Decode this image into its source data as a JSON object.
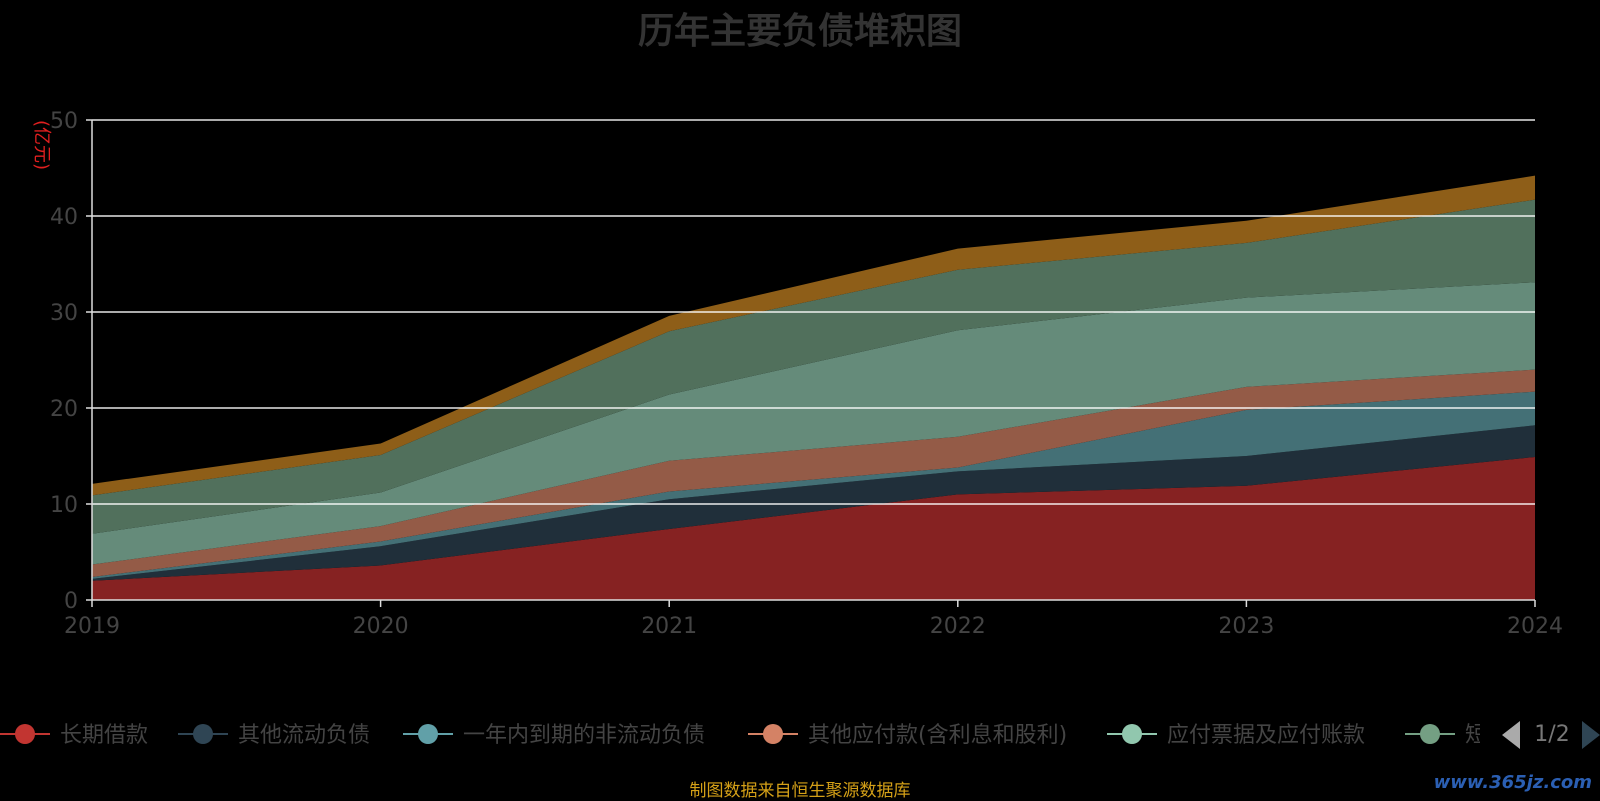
{
  "chart_data": {
    "type": "area",
    "stacked": true,
    "title": "历年主要负债堆积图",
    "ylabel": "(亿元)",
    "x": [
      "2019",
      "2020",
      "2021",
      "2022",
      "2023",
      "2024"
    ],
    "ylim": [
      0,
      50
    ],
    "yticks": [
      "0",
      "10",
      "20",
      "30",
      "40",
      "50"
    ],
    "grid": true,
    "legend_position": "bottom",
    "legend_page": "1/2",
    "series": [
      {
        "name": "长期借款",
        "color": "#c23531",
        "fill": "#862222",
        "values": [
          2.0,
          3.6,
          7.4,
          11.0,
          11.9,
          14.9
        ]
      },
      {
        "name": "其他流动负债",
        "color": "#2f4554",
        "fill": "#202f3a",
        "values": [
          0.2,
          2.0,
          3.1,
          2.4,
          3.1,
          3.3
        ]
      },
      {
        "name": "一年内到期的非流动负债",
        "color": "#61a0a8",
        "fill": "#447076",
        "values": [
          0.2,
          0.5,
          0.8,
          0.4,
          4.8,
          3.5
        ]
      },
      {
        "name": "其他应付款(含利息和股利)",
        "color": "#d48265",
        "fill": "#945b47",
        "values": [
          1.3,
          1.6,
          3.2,
          3.2,
          2.4,
          2.3
        ]
      },
      {
        "name": "应付票据及应付账款",
        "color": "#91c7ae",
        "fill": "#658b7a",
        "values": [
          3.2,
          3.5,
          6.9,
          11.1,
          9.3,
          9.1
        ]
      },
      {
        "name": "短期借款",
        "color": "#749f83",
        "fill": "#51705c",
        "values": [
          4.0,
          3.9,
          6.6,
          6.3,
          5.7,
          8.6
        ]
      },
      {
        "name": "",
        "color": "#ca8622",
        "fill": "#8e5e18",
        "values": [
          1.2,
          1.2,
          1.6,
          2.2,
          2.3,
          2.5
        ]
      }
    ]
  },
  "footer": "制图数据来自恒生聚源数据库",
  "watermark": "www.365jz.com"
}
